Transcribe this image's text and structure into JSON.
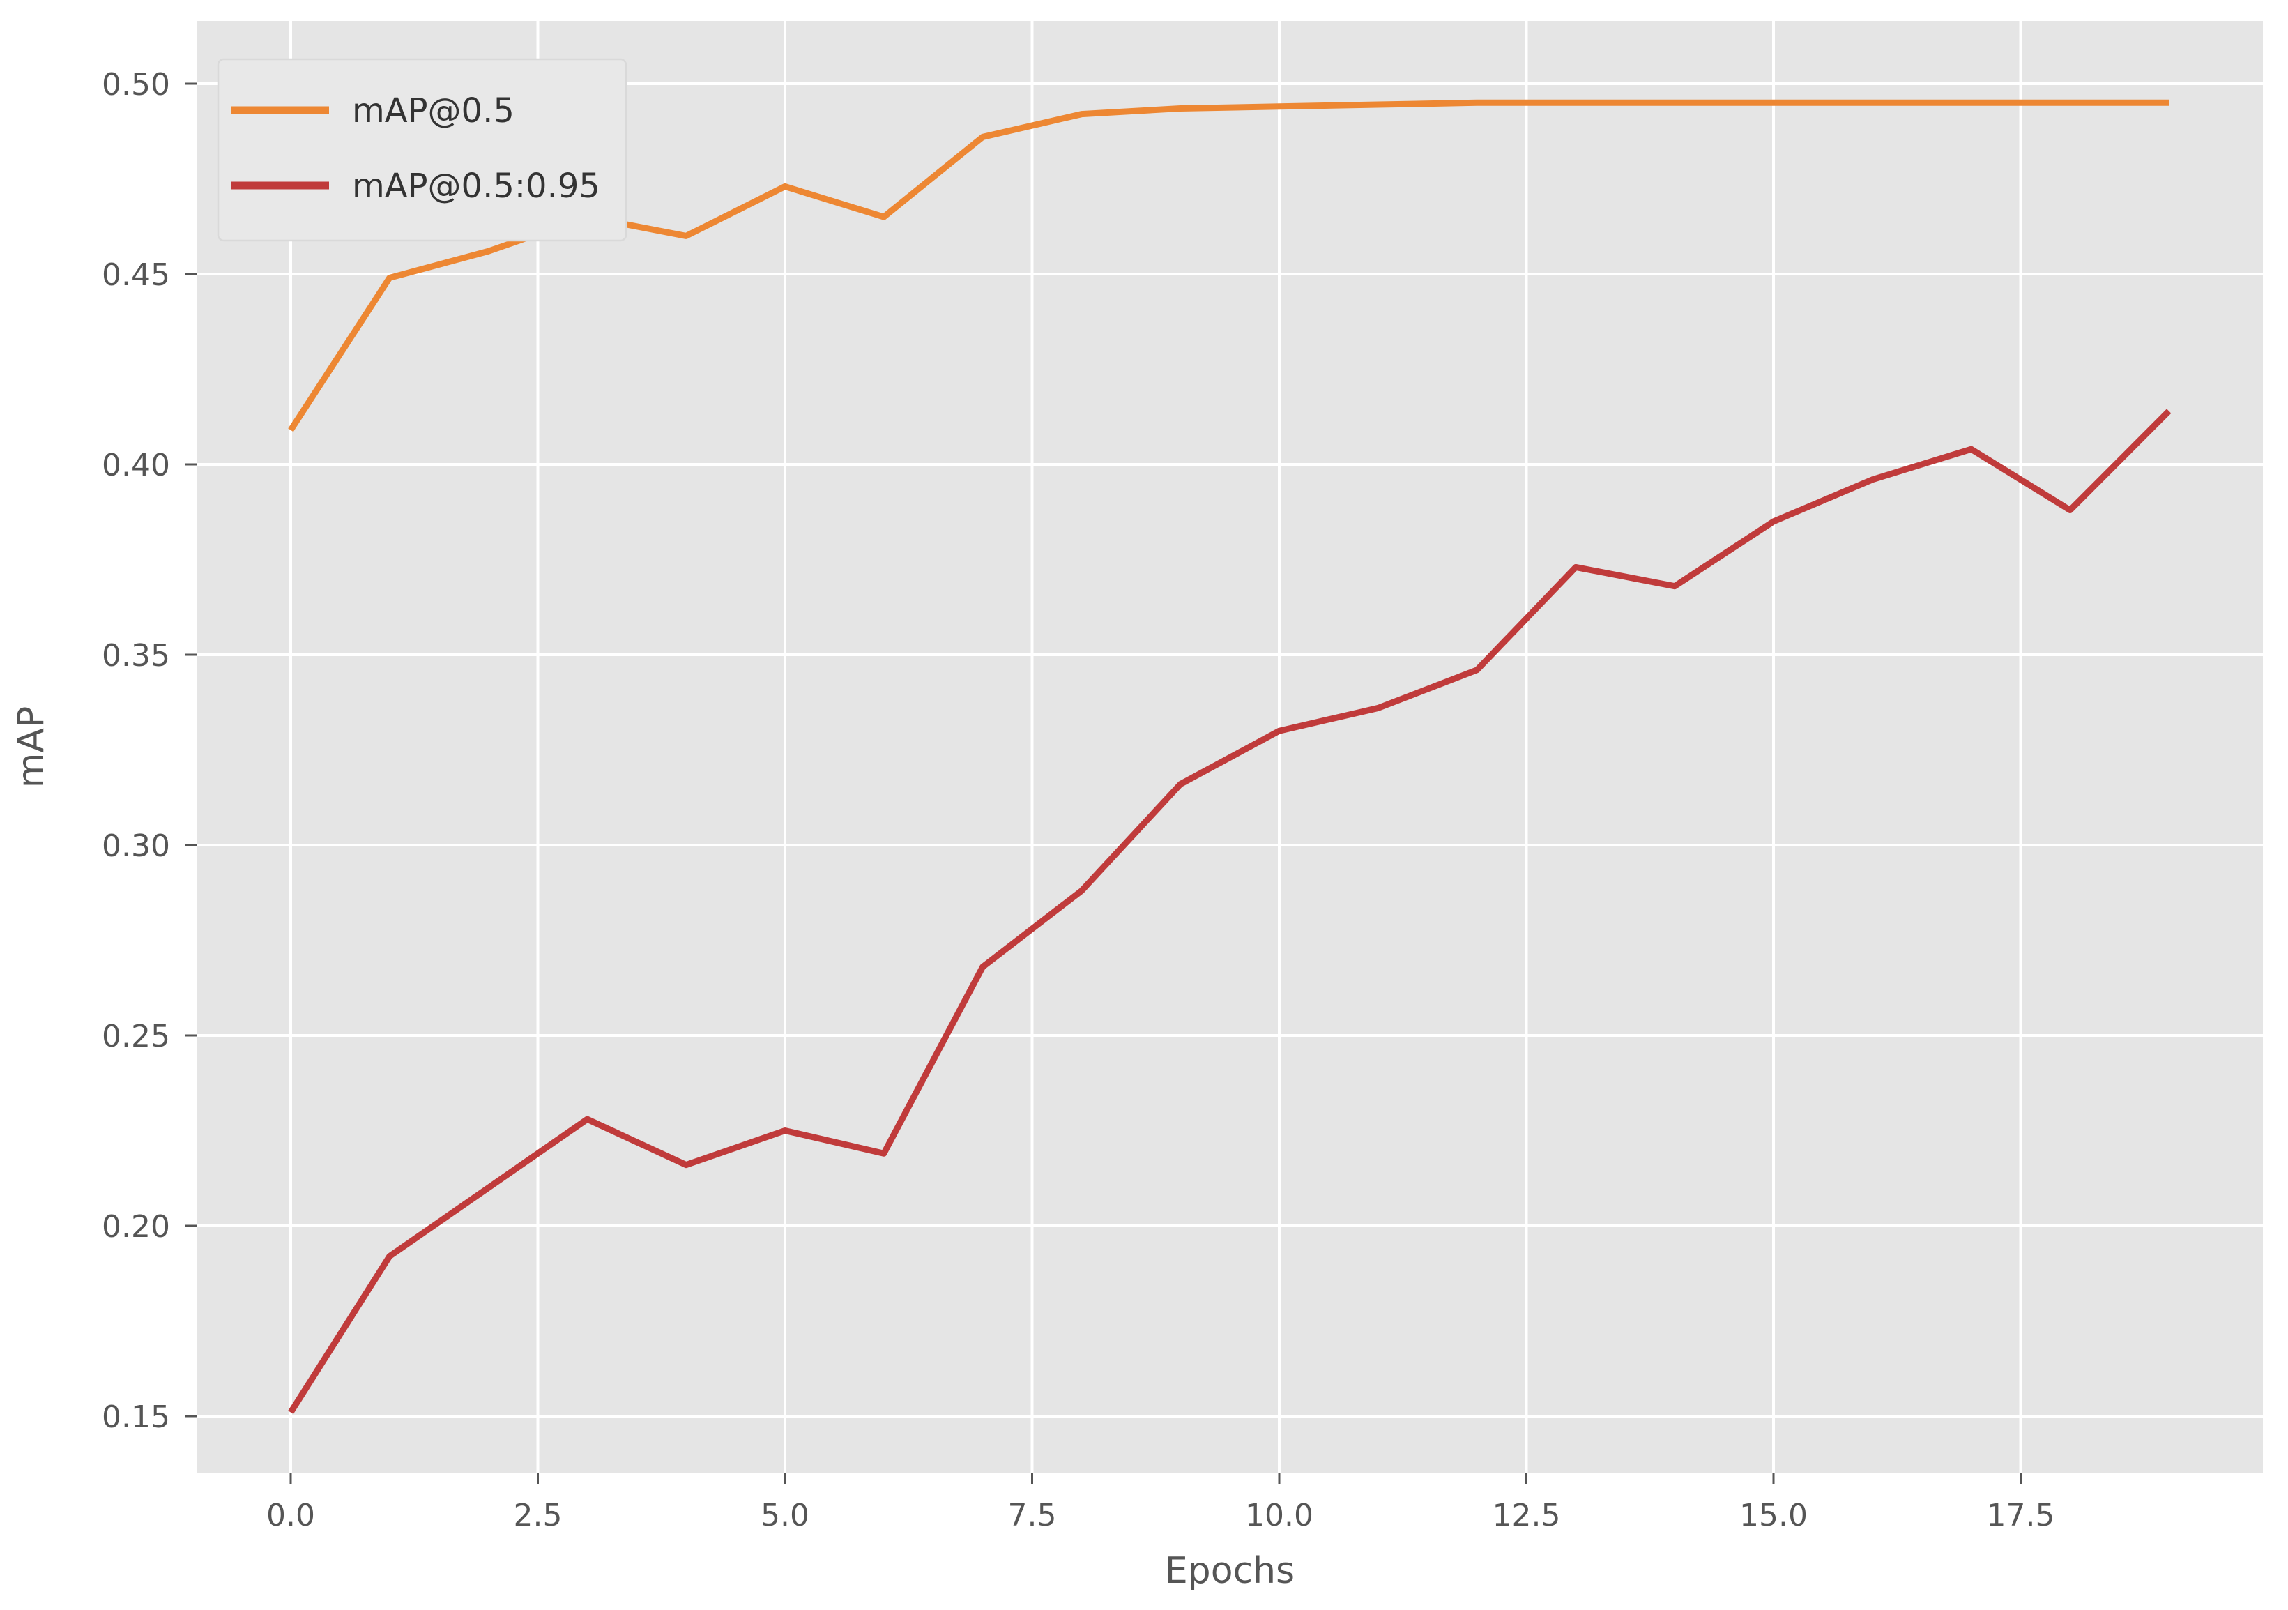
{
  "chart_data": {
    "type": "line",
    "title": "",
    "xlabel": "Epochs",
    "ylabel": "mAP",
    "x": [
      0,
      1,
      2,
      3,
      4,
      5,
      6,
      7,
      8,
      9,
      10,
      11,
      12,
      13,
      14,
      15,
      16,
      17,
      18,
      19
    ],
    "series": [
      {
        "name": "mAP@0.5",
        "color": "#ED8733",
        "values": [
          0.409,
          0.449,
          0.456,
          0.465,
          0.46,
          0.473,
          0.465,
          0.486,
          0.492,
          0.4935,
          0.494,
          0.4945,
          0.495,
          0.495,
          0.495,
          0.495,
          0.495,
          0.495,
          0.495,
          0.495
        ]
      },
      {
        "name": "mAP@0.5:0.95",
        "color": "#C03B3B",
        "values": [
          0.151,
          0.192,
          0.21,
          0.228,
          0.216,
          0.225,
          0.219,
          0.268,
          0.288,
          0.316,
          0.33,
          0.336,
          0.346,
          0.373,
          0.368,
          0.385,
          0.396,
          0.404,
          0.388,
          0.414
        ]
      }
    ],
    "xticks": [
      0.0,
      2.5,
      5.0,
      7.5,
      10.0,
      12.5,
      15.0,
      17.5
    ],
    "yticks": [
      0.15,
      0.2,
      0.25,
      0.3,
      0.35,
      0.4,
      0.45,
      0.5
    ],
    "xlim": [
      -0.95,
      19.95
    ],
    "ylim": [
      0.1335,
      0.5165
    ],
    "grid": true,
    "legend_position": "upper left",
    "colors": {
      "figure_bg": "#ffffff",
      "plot_bg": "#E5E5E5",
      "grid": "#ffffff",
      "tick": "#555555",
      "tick_label": "#555555",
      "axis_label": "#555555",
      "legend_bg": "#E8E8E8",
      "legend_border": "#D9D9D9",
      "legend_text": "#333333"
    }
  }
}
